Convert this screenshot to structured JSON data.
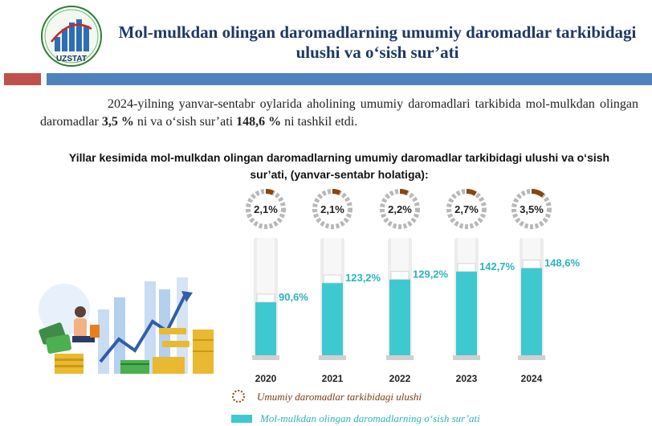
{
  "header": {
    "logo_text": "UZSTAT",
    "title": "Mol-mulkdan olingan daromadlarning umumiy daromadlar tarkibidagi ulushi va o‘sish sur’ati"
  },
  "summary": {
    "part1": "2024-yilning yanvar-sentabr oylarida aholining umumiy daromadlari tarkibida mol-mulkdan olingan daromadlar ",
    "value1": "3,5 %",
    "part2": " ni va o‘sish sur’ati ",
    "value2": "148,6 %",
    "part3": " ni tashkil etdi."
  },
  "colors": {
    "title": "#1f3864",
    "band_red": "#c0504d",
    "band_blue": "#4f81bd",
    "bar": "#3ec8d0",
    "ring_accent": "#8b4513",
    "ring_base": "#b8b8b8",
    "growth_label": "#2bb3bd"
  },
  "chart_data": {
    "type": "bar",
    "title": "Yillar kesimida mol-mulkdan olingan daromadlarning umumiy daromadlar tarkibidagi ulushi va o‘sish sur’ati, (yanvar-sentabr holatiga):",
    "categories": [
      "2020",
      "2021",
      "2022",
      "2023",
      "2024"
    ],
    "series": [
      {
        "name": "Mol-mulkdan olingan daromadlarning o‘sish sur’ati",
        "values": [
          90.6,
          123.2,
          129.2,
          142.7,
          148.6
        ],
        "labels": [
          "90,6%",
          "123,2%",
          "129,2%",
          "142,7%",
          "148,6%"
        ]
      },
      {
        "name": "Umumiy daromadlar tarkibidagi ulushi",
        "values": [
          2.1,
          2.1,
          2.2,
          2.7,
          3.5
        ],
        "labels": [
          "2,1%",
          "2,1%",
          "2,2%",
          "2,7%",
          "3,5%"
        ]
      }
    ],
    "ylim": [
      0,
      200
    ],
    "grid": false,
    "legend_position": "bottom"
  }
}
